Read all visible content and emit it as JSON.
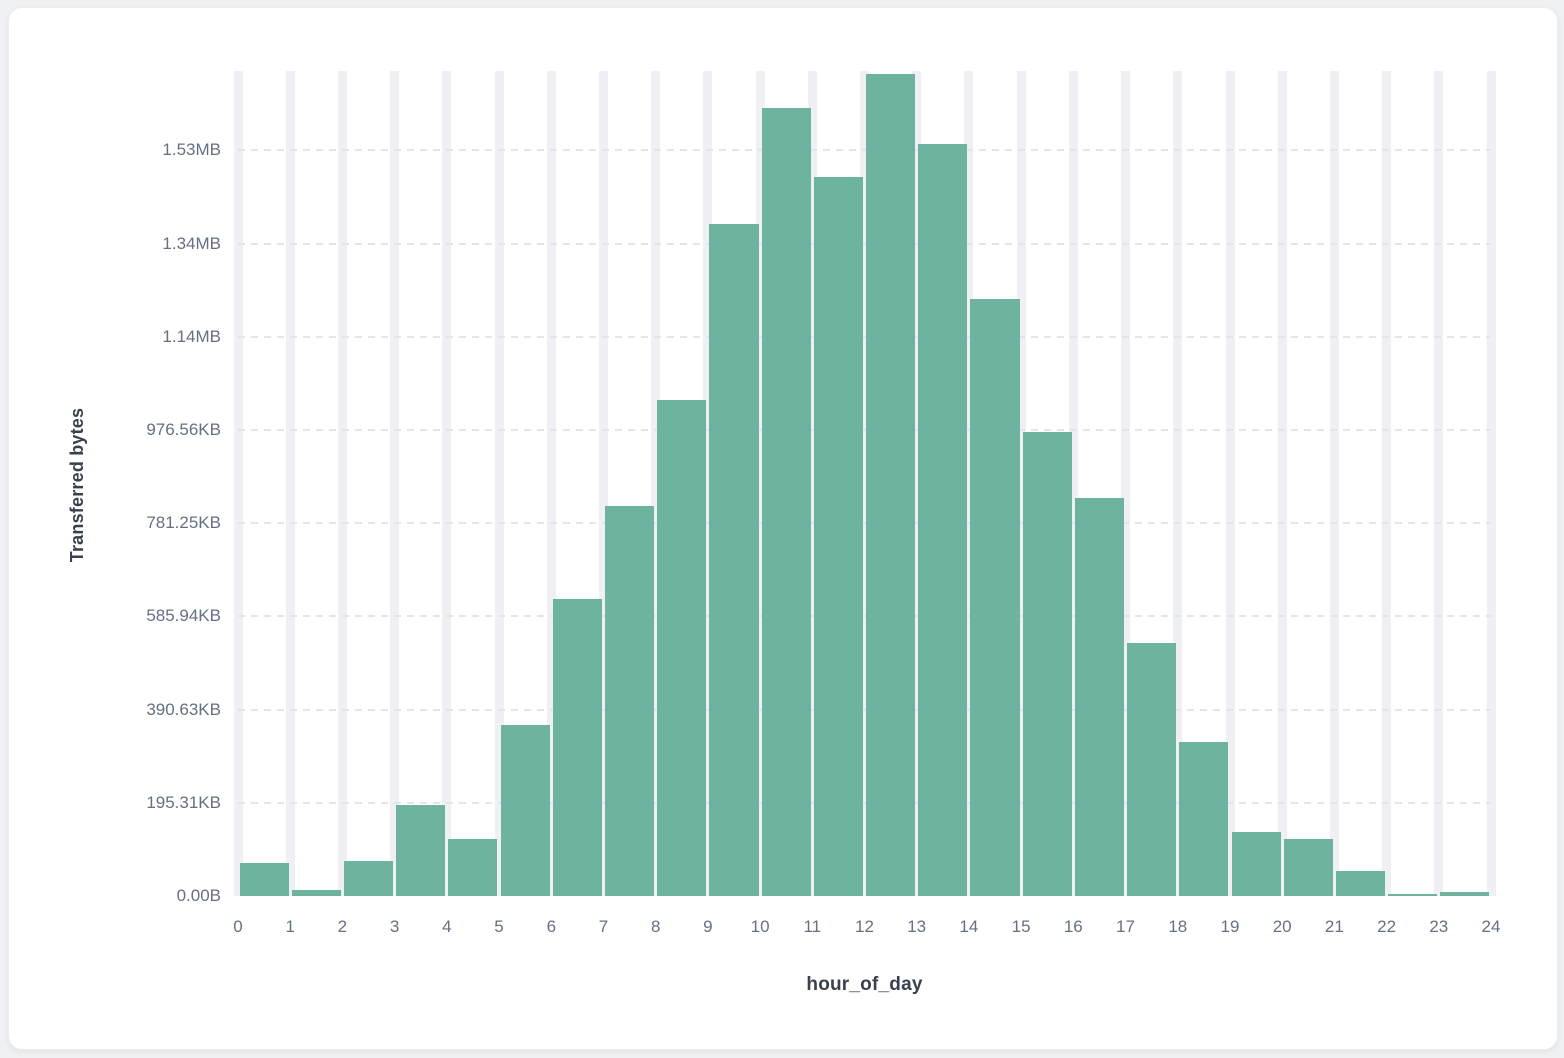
{
  "page": {
    "background": "#eff1f4"
  },
  "card": {
    "background": "#ffffff",
    "border_color": "#ebedf0"
  },
  "chart_data": {
    "type": "bar",
    "title": "",
    "xlabel": "hour_of_day",
    "ylabel": "Transferred bytes",
    "categories": [
      0,
      1,
      2,
      3,
      4,
      5,
      6,
      7,
      8,
      9,
      10,
      11,
      12,
      13,
      14,
      15,
      16,
      17,
      18,
      19,
      20,
      21,
      22,
      23
    ],
    "values": [
      70000,
      14000,
      75000,
      195000,
      123000,
      366000,
      638000,
      837000,
      1065000,
      1442000,
      1690000,
      1543000,
      1764000,
      1614000,
      1281000,
      996000,
      855000,
      543000,
      331000,
      138000,
      123000,
      54000,
      4000,
      8000
    ],
    "x_tick_labels": [
      "0",
      "1",
      "2",
      "3",
      "4",
      "5",
      "6",
      "7",
      "8",
      "9",
      "10",
      "11",
      "12",
      "13",
      "14",
      "15",
      "16",
      "17",
      "18",
      "19",
      "20",
      "21",
      "22",
      "23",
      "24"
    ],
    "y_ticks": [
      {
        "value": 0,
        "label": "0.00B"
      },
      {
        "value": 200000,
        "label": "195.31KB"
      },
      {
        "value": 400000,
        "label": "390.63KB"
      },
      {
        "value": 600000,
        "label": "585.94KB"
      },
      {
        "value": 800000,
        "label": "781.25KB"
      },
      {
        "value": 1000000,
        "label": "976.56KB"
      },
      {
        "value": 1200000,
        "label": "1.14MB"
      },
      {
        "value": 1400000,
        "label": "1.34MB"
      },
      {
        "value": 1600000,
        "label": "1.53MB"
      }
    ],
    "ylim": [
      0,
      1770000
    ],
    "bar_color": "#6db3a0",
    "grid": {
      "vertical_band_color": "#eef0f4",
      "horizontal_dash_color": "#e2e5ec",
      "vertical": "solid-band",
      "horizontal": "dashed"
    },
    "legend_position": "none"
  },
  "colors": {
    "tick_label": "#667084",
    "axis_title": "#39414e"
  }
}
